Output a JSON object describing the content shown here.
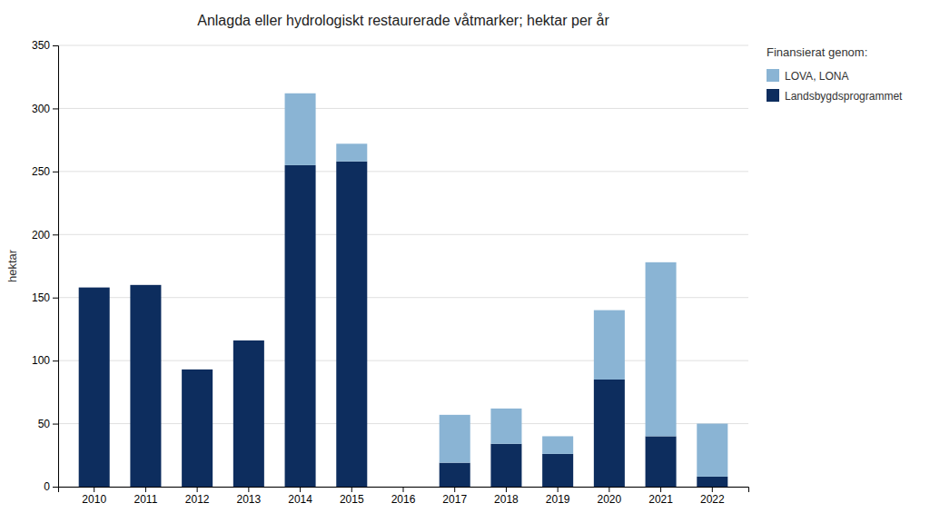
{
  "chart_data": {
    "type": "bar",
    "stacked": true,
    "title": "Anlagda eller hydrologiskt restaurerade våtmarker; hektar per år",
    "ylabel": "hektar",
    "categories": [
      "2010",
      "2011",
      "2012",
      "2013",
      "2014",
      "2015",
      "2016",
      "2017",
      "2018",
      "2019",
      "2020",
      "2021",
      "2022"
    ],
    "series": [
      {
        "name": "Landsbygdsprogrammet",
        "color": "#0d2d5e",
        "values": [
          158,
          160,
          93,
          116,
          255,
          258,
          0,
          19,
          34,
          26,
          85,
          40,
          8
        ]
      },
      {
        "name": "LOVA, LONA",
        "color": "#8ab4d4",
        "values": [
          0,
          0,
          0,
          0,
          57,
          14,
          0,
          38,
          28,
          14,
          55,
          138,
          42
        ]
      }
    ],
    "legend_title": "Finansierat genom:",
    "legend": "upper right",
    "ylim": [
      0,
      350
    ],
    "yticks": [
      0,
      50,
      100,
      150,
      200,
      250,
      300,
      350
    ],
    "grid": true
  }
}
